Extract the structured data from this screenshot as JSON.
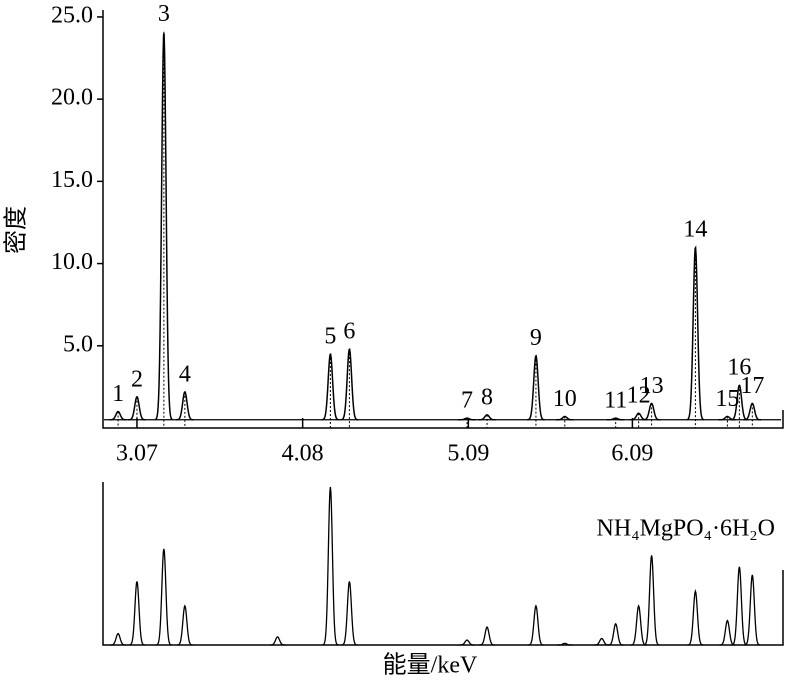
{
  "chart_data": [
    {
      "type": "spectrum",
      "y_label": "密度",
      "x": [
        2.955,
        3.07,
        3.234,
        3.362,
        4.249,
        4.365,
        5.082,
        5.204,
        5.502,
        5.678,
        5.988,
        6.128,
        6.207,
        6.474,
        6.669,
        6.742,
        6.821
      ],
      "values": [
        1.0,
        1.9,
        24.1,
        2.2,
        4.5,
        4.8,
        0.6,
        0.8,
        4.4,
        0.7,
        0.6,
        0.9,
        1.5,
        11.0,
        0.7,
        2.6,
        1.5
      ],
      "peak_labels": [
        "1",
        "2",
        "3",
        "4",
        "5",
        "6",
        "7",
        "8",
        "9",
        "10",
        "11",
        "12",
        "13",
        "14",
        "15",
        "16",
        "17"
      ],
      "background": 0.5,
      "color": "#000000",
      "xlim": [
        2.863,
        7.008
      ],
      "xticks": [
        3.07,
        4.08,
        5.09,
        6.09
      ],
      "ylim": [
        0,
        25.3
      ],
      "yticks": [
        {
          "value": 5,
          "label": "5.0"
        },
        {
          "value": 10,
          "label": "10.0"
        },
        {
          "value": 15,
          "label": "15.0"
        },
        {
          "value": 20,
          "label": "20.0"
        },
        {
          "value": 25,
          "label": "25.0"
        }
      ]
    },
    {
      "type": "stem",
      "x_label": "能量/keV",
      "annotation": "NH₄MgPO₄·6H₂O",
      "x": [
        2.955,
        3.07,
        3.234,
        3.362,
        3.927,
        4.249,
        4.365,
        5.082,
        5.204,
        5.502,
        5.678,
        5.903,
        5.988,
        6.128,
        6.207,
        6.474,
        6.669,
        6.742,
        6.821
      ],
      "values": [
        7,
        39,
        59,
        24,
        5,
        97,
        39,
        3,
        11,
        24,
        1,
        4,
        13,
        24,
        55,
        33,
        15,
        48,
        43
      ],
      "color": "#000000",
      "xlim": [
        2.863,
        7.008
      ],
      "ylim": [
        0,
        100
      ]
    }
  ]
}
